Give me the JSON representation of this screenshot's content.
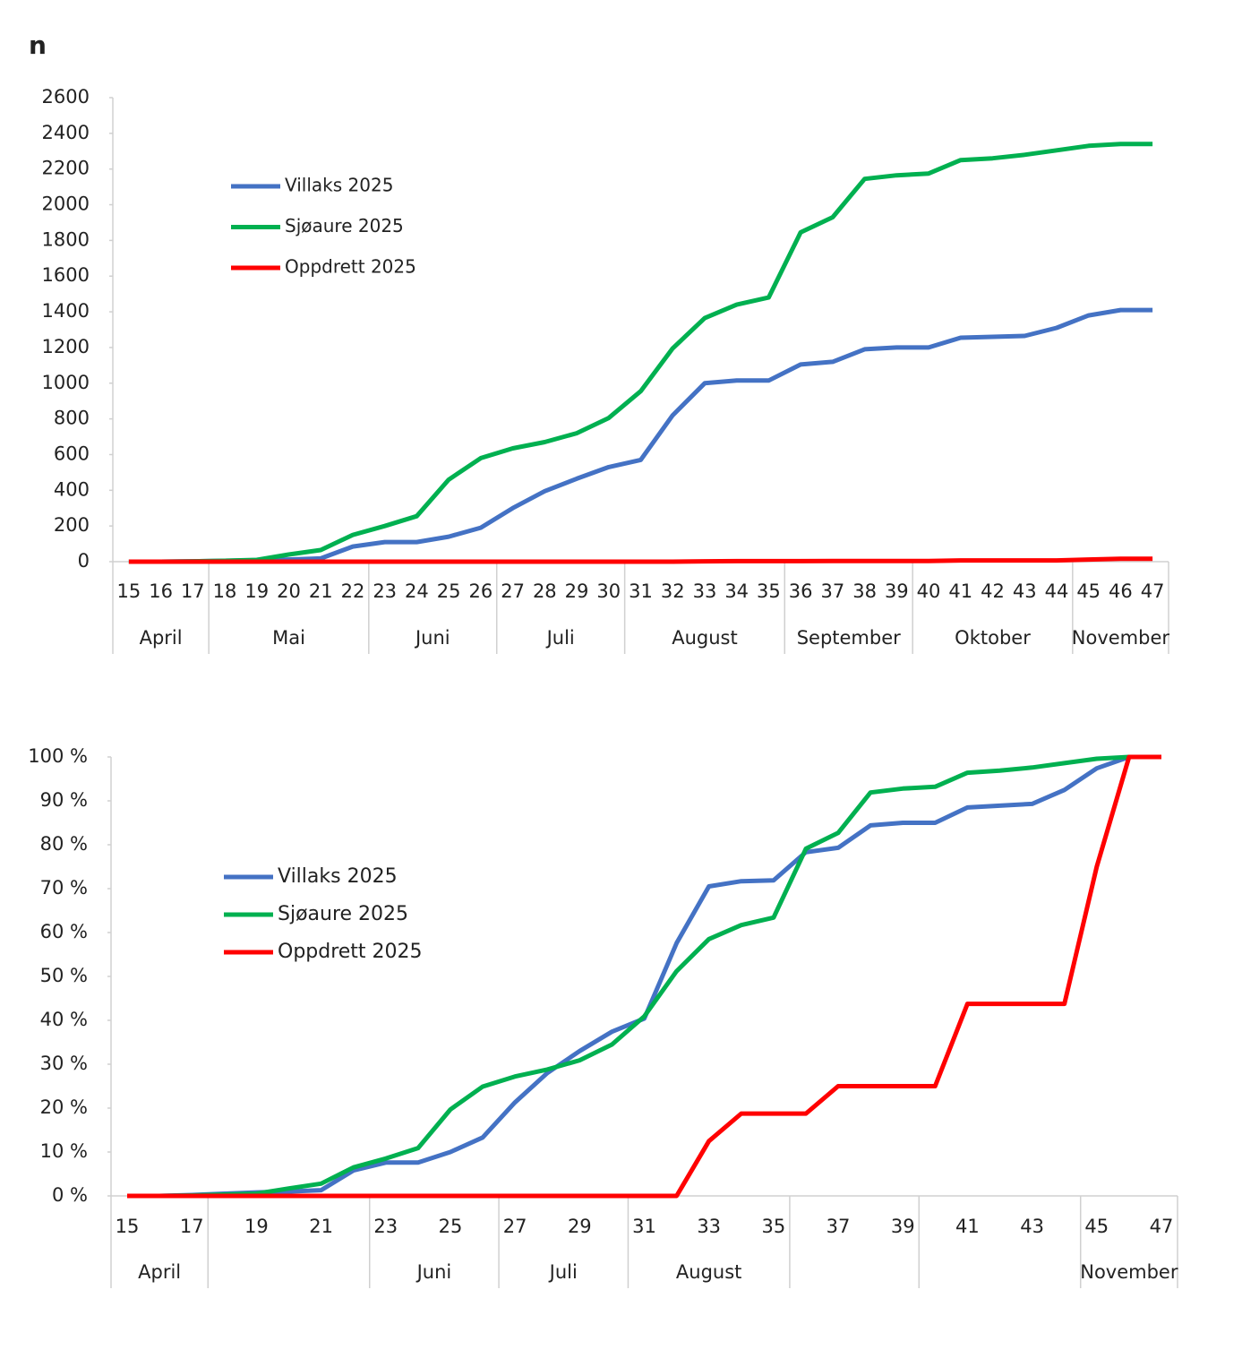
{
  "chart_data": [
    {
      "type": "line",
      "y_label": "n",
      "categories": [
        "15",
        "16",
        "17",
        "18",
        "19",
        "20",
        "21",
        "22",
        "23",
        "24",
        "25",
        "26",
        "27",
        "28",
        "29",
        "30",
        "31",
        "32",
        "33",
        "34",
        "35",
        "36",
        "37",
        "38",
        "39",
        "40",
        "41",
        "42",
        "43",
        "44",
        "45",
        "46",
        "47"
      ],
      "month_groups": [
        {
          "label": "April",
          "span": 3
        },
        {
          "label": "Mai",
          "span": 5
        },
        {
          "label": "Juni",
          "span": 4
        },
        {
          "label": "Juli",
          "span": 4
        },
        {
          "label": "August",
          "span": 5
        },
        {
          "label": "September",
          "span": 4
        },
        {
          "label": "Oktober",
          "span": 5
        },
        {
          "label": "November",
          "span": 3
        }
      ],
      "ylim": [
        0,
        2600
      ],
      "yticks": [
        0,
        200,
        400,
        600,
        800,
        1000,
        1200,
        1400,
        1600,
        1800,
        2000,
        2200,
        2400,
        2600
      ],
      "legend": "upper left",
      "series": [
        {
          "name": "Villaks 2025",
          "color": "#4472c4",
          "values": [
            0,
            0,
            2,
            5,
            8,
            12,
            18,
            85,
            110,
            110,
            140,
            190,
            300,
            395,
            465,
            530,
            570,
            820,
            1000,
            1015,
            1015,
            1105,
            1120,
            1190,
            1200,
            1200,
            1255,
            1260,
            1265,
            1310,
            1380,
            1410,
            1410
          ]
        },
        {
          "name": "Sjøaure 2025",
          "color": "#00b050",
          "values": [
            0,
            0,
            2,
            5,
            10,
            40,
            65,
            150,
            200,
            255,
            460,
            580,
            635,
            670,
            720,
            805,
            955,
            1195,
            1365,
            1440,
            1480,
            1845,
            1930,
            2145,
            2165,
            2175,
            2250,
            2260,
            2280,
            2305,
            2330,
            2340,
            2340
          ]
        },
        {
          "name": "Oppdrett 2025",
          "color": "#ff0000",
          "values": [
            0,
            0,
            0,
            0,
            0,
            0,
            0,
            0,
            0,
            0,
            0,
            0,
            0,
            0,
            0,
            0,
            0,
            0,
            2,
            3,
            3,
            3,
            4,
            4,
            4,
            4,
            7,
            7,
            7,
            7,
            12,
            16,
            16
          ]
        }
      ]
    },
    {
      "type": "line",
      "categories": [
        "15",
        null,
        "17",
        null,
        "19",
        null,
        "21",
        null,
        "23",
        null,
        "25",
        null,
        "27",
        null,
        "29",
        null,
        "31",
        null,
        "33",
        null,
        "35",
        null,
        "37",
        null,
        "39",
        null,
        "41",
        null,
        "43",
        null,
        "45",
        null,
        "47"
      ],
      "month_groups": [
        {
          "label": "April",
          "span": 3
        },
        {
          "label": null,
          "span": 5
        },
        {
          "label": "Juni",
          "span": 4
        },
        {
          "label": "Juli",
          "span": 4
        },
        {
          "label": "August",
          "span": 5
        },
        {
          "label": null,
          "span": 4
        },
        {
          "label": null,
          "span": 5
        },
        {
          "label": "November",
          "span": 3
        }
      ],
      "ylim": [
        0,
        100
      ],
      "yticks": [
        {
          "value": 0,
          "label": "0 %"
        },
        {
          "value": 10,
          "label": "10 %"
        },
        {
          "value": 20,
          "label": "20 %"
        },
        {
          "value": 30,
          "label": "30 %"
        },
        {
          "value": 40,
          "label": "40 %"
        },
        {
          "value": 50,
          "label": "50 %"
        },
        {
          "value": 60,
          "label": "60 %"
        },
        {
          "value": 70,
          "label": "70 %"
        },
        {
          "value": 80,
          "label": "80 %"
        },
        {
          "value": 90,
          "label": "90 %"
        },
        {
          "value": 100,
          "label": "100 %"
        }
      ],
      "legend": "upper left",
      "series": [
        {
          "name": "Villaks 2025",
          "color": "#4472c4",
          "values": [
            0,
            0,
            0.2,
            0.5,
            0.8,
            1.0,
            1.3,
            5.8,
            7.6,
            7.6,
            10,
            13.3,
            21.3,
            28,
            33,
            37.4,
            40.4,
            57.6,
            70.5,
            71.7,
            71.9,
            78.3,
            79.3,
            84.4,
            85,
            85,
            88.5,
            88.9,
            89.3,
            92.5,
            97.4,
            100,
            100
          ]
        },
        {
          "name": "Sjøaure 2025",
          "color": "#00b050",
          "values": [
            0,
            0,
            0.1,
            0.3,
            0.5,
            1.7,
            2.8,
            6.5,
            8.5,
            10.9,
            19.7,
            24.9,
            27.2,
            28.8,
            30.9,
            34.5,
            40.9,
            51.2,
            58.5,
            61.7,
            63.4,
            79.1,
            82.7,
            91.9,
            92.8,
            93.2,
            96.4,
            96.9,
            97.6,
            98.6,
            99.6,
            100,
            100
          ]
        },
        {
          "name": "Oppdrett 2025",
          "color": "#ff0000",
          "values": [
            0,
            0,
            0,
            0,
            0,
            0,
            0,
            0,
            0,
            0,
            0,
            0,
            0,
            0,
            0,
            0,
            0,
            0,
            12.5,
            18.75,
            18.75,
            18.75,
            25,
            25,
            25,
            25,
            43.75,
            43.75,
            43.75,
            43.75,
            75,
            100,
            100
          ]
        }
      ]
    }
  ]
}
